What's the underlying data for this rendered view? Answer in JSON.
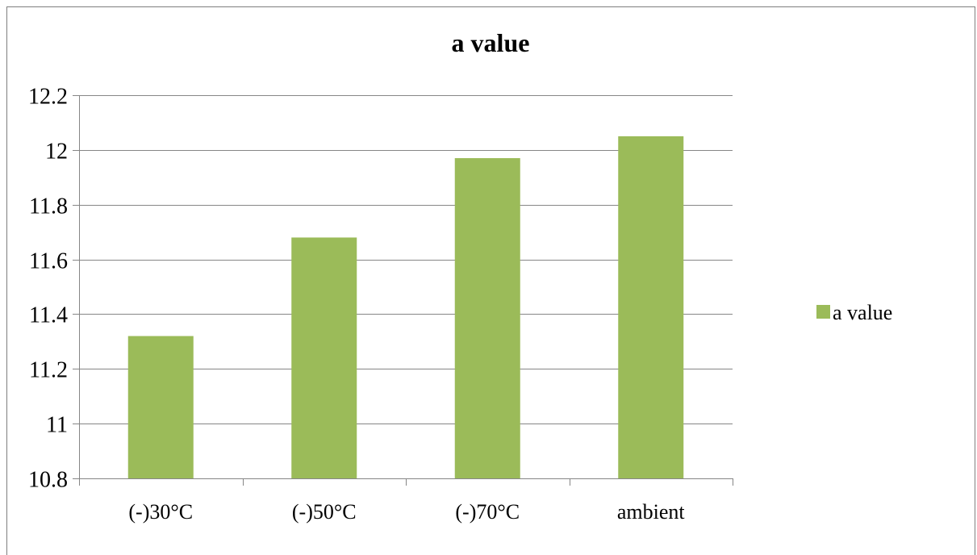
{
  "chart_data": {
    "type": "bar",
    "title": "a value",
    "xlabel": "",
    "ylabel": "",
    "categories": [
      "(-)30°C",
      "(-)50°C",
      "(-)70°C",
      "ambient"
    ],
    "series": [
      {
        "name": "a value",
        "values": [
          11.32,
          11.68,
          11.97,
          12.05
        ]
      }
    ],
    "ylim": [
      10.8,
      12.2
    ],
    "yticks": [
      "10.8",
      "11",
      "11.2",
      "11.4",
      "11.6",
      "11.8",
      "12",
      "12.2"
    ],
    "grid": true,
    "legend_position": "right",
    "colors": {
      "bar": "#9bbb59",
      "grid": "#868686",
      "text": "#000000"
    }
  }
}
